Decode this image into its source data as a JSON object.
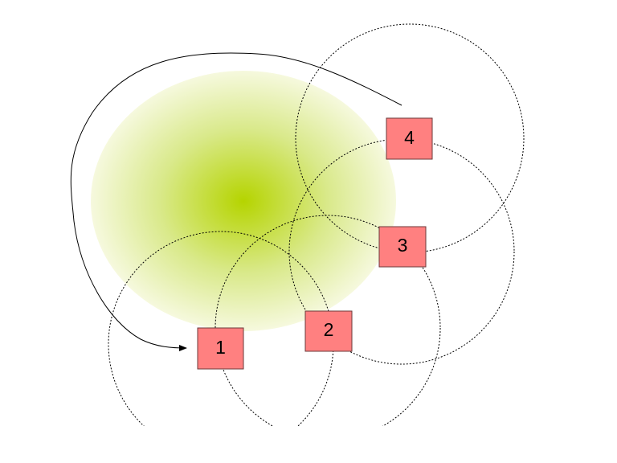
{
  "colors": {
    "background": "#ffffff",
    "node_fill": "#ff8080",
    "node_stroke": "#6b3a3a",
    "glow_center": "#b5d400",
    "glow_edge": "#f6f9de",
    "circle_stroke": "#000000",
    "arrow_stroke": "#000000"
  },
  "nodes": [
    {
      "id": "1",
      "label": "1"
    },
    {
      "id": "2",
      "label": "2"
    },
    {
      "id": "3",
      "label": "3"
    },
    {
      "id": "4",
      "label": "4"
    }
  ],
  "range_circles": [
    "1",
    "2",
    "3",
    "4"
  ],
  "arrow": {
    "from": "4",
    "to": "1",
    "icon": "curved-arrow"
  },
  "highlight": {
    "shape": "radial-glow",
    "icon": "green-glow"
  }
}
